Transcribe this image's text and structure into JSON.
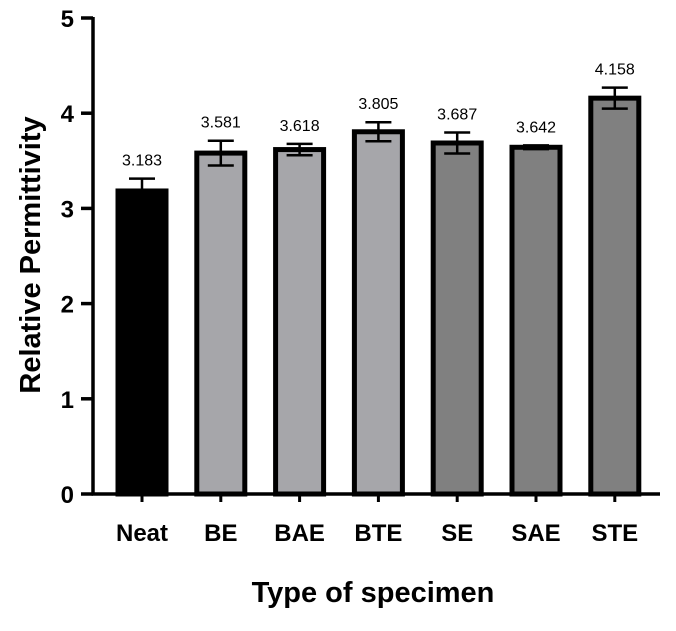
{
  "chart_data": {
    "type": "bar",
    "title": "",
    "xlabel": "Type of specimen",
    "ylabel": "Relative Permittivity",
    "categories": [
      "Neat",
      "BE",
      "BAE",
      "BTE",
      "SE",
      "SAE",
      "STE"
    ],
    "values": [
      3.183,
      3.581,
      3.618,
      3.805,
      3.687,
      3.642,
      4.158
    ],
    "value_labels": [
      "3.183",
      "3.581",
      "3.618",
      "3.805",
      "3.687",
      "3.642",
      "4.158"
    ],
    "errors": [
      0.13,
      0.13,
      0.06,
      0.1,
      0.11,
      0.02,
      0.11
    ],
    "ylim": [
      0,
      5
    ],
    "yticks": [
      0,
      1,
      2,
      3,
      4,
      5
    ],
    "ytick_labels": [
      "0",
      "1",
      "2",
      "3",
      "4",
      "5"
    ],
    "grid": false,
    "legend": "none",
    "colors": [
      "#000000",
      "#a6a6aa",
      "#a6a6aa",
      "#a6a6aa",
      "#808080",
      "#808080",
      "#808080"
    ],
    "edge_color": "#000000"
  }
}
